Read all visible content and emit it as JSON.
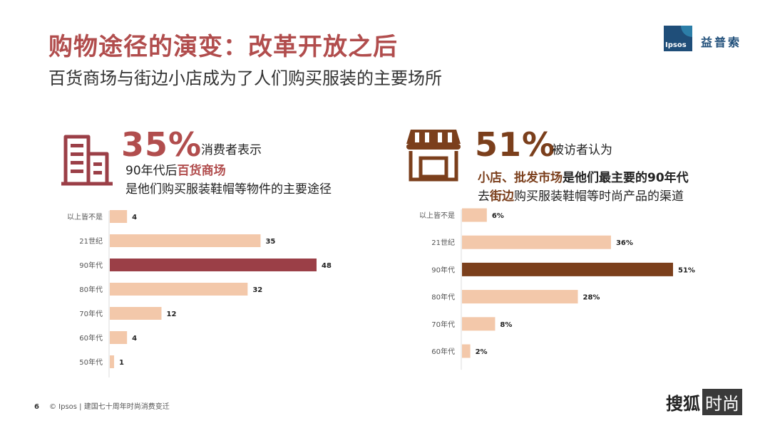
{
  "header": {
    "title": "购物途径的演变：改革开放之后",
    "subtitle": "百货商场与街边小店成为了人们购买服装的主要场所",
    "logo_text": "Ipsos",
    "brand_cn": "益普索"
  },
  "left": {
    "percent": "35%",
    "percent_desc": "消费者表示",
    "line1_pre": "90年代后",
    "line1_hl": "百货商场",
    "line2": "是他们购买服装鞋帽等物件的主要途径",
    "icon": "office-building-icon",
    "accent_color": "#9b3f47",
    "bar_color": "#f3c8aa"
  },
  "right": {
    "percent": "51%",
    "percent_desc": "被访者认为",
    "line1_hl": "小店、批发市场",
    "line1_post": "是他们最主要的90年代",
    "line2_pre": "去",
    "line2_hl": "街边",
    "line2_post": "购买服装鞋帽等时尚产品的渠道",
    "icon": "storefront-icon",
    "accent_color": "#7b3f1c",
    "bar_color": "#f3c8aa"
  },
  "chart_data": [
    {
      "type": "bar",
      "orientation": "horizontal",
      "categories": [
        "以上皆不是",
        "21世纪",
        "90年代",
        "80年代",
        "70年代",
        "60年代",
        "50年代"
      ],
      "values": [
        4,
        35,
        48,
        32,
        12,
        4,
        1
      ],
      "value_labels": [
        "4",
        "35",
        "48",
        "32",
        "12",
        "4",
        "1"
      ],
      "highlight_index": 2,
      "xlim": [
        0,
        48
      ]
    },
    {
      "type": "bar",
      "orientation": "horizontal",
      "categories": [
        "以上皆不是",
        "21世纪",
        "90年代",
        "80年代",
        "70年代",
        "60年代"
      ],
      "values": [
        6,
        36,
        51,
        28,
        8,
        2
      ],
      "value_labels": [
        "6%",
        "36%",
        "51%",
        "28%",
        "8%",
        "2%"
      ],
      "highlight_index": 2,
      "xlim": [
        0,
        51
      ]
    }
  ],
  "footer": {
    "page_number": "6",
    "text": "© Ipsos | 建国七十周年时尚消费变迁",
    "sohu_text": "搜狐",
    "sohu_box": "时尚"
  }
}
